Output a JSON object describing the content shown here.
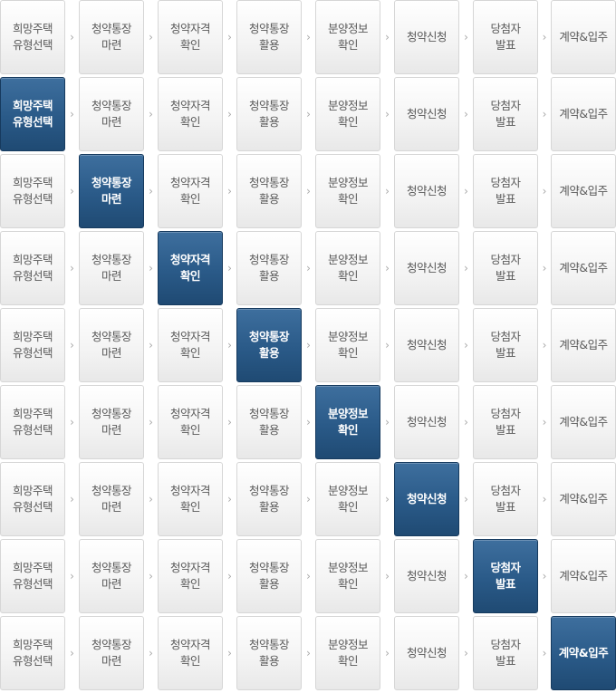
{
  "steps": [
    "희망주택\n유형선택",
    "청약통장\n마련",
    "청약자격\n확인",
    "청약통장\n활용",
    "분양정보\n확인",
    "청약신청",
    "당첨자\n발표",
    "계약&입주"
  ],
  "rows": [
    {
      "active": -1
    },
    {
      "active": 0
    },
    {
      "active": 1
    },
    {
      "active": 2
    },
    {
      "active": 3
    },
    {
      "active": 4
    },
    {
      "active": 5
    },
    {
      "active": 6
    },
    {
      "active": 7
    }
  ],
  "separator_icon": "chevron-right-icon",
  "colors": {
    "active_bg": "#2a5a88",
    "inactive_bg": "#f3f3f3",
    "inactive_text": "#5a5a5a",
    "active_text": "#ffffff"
  }
}
